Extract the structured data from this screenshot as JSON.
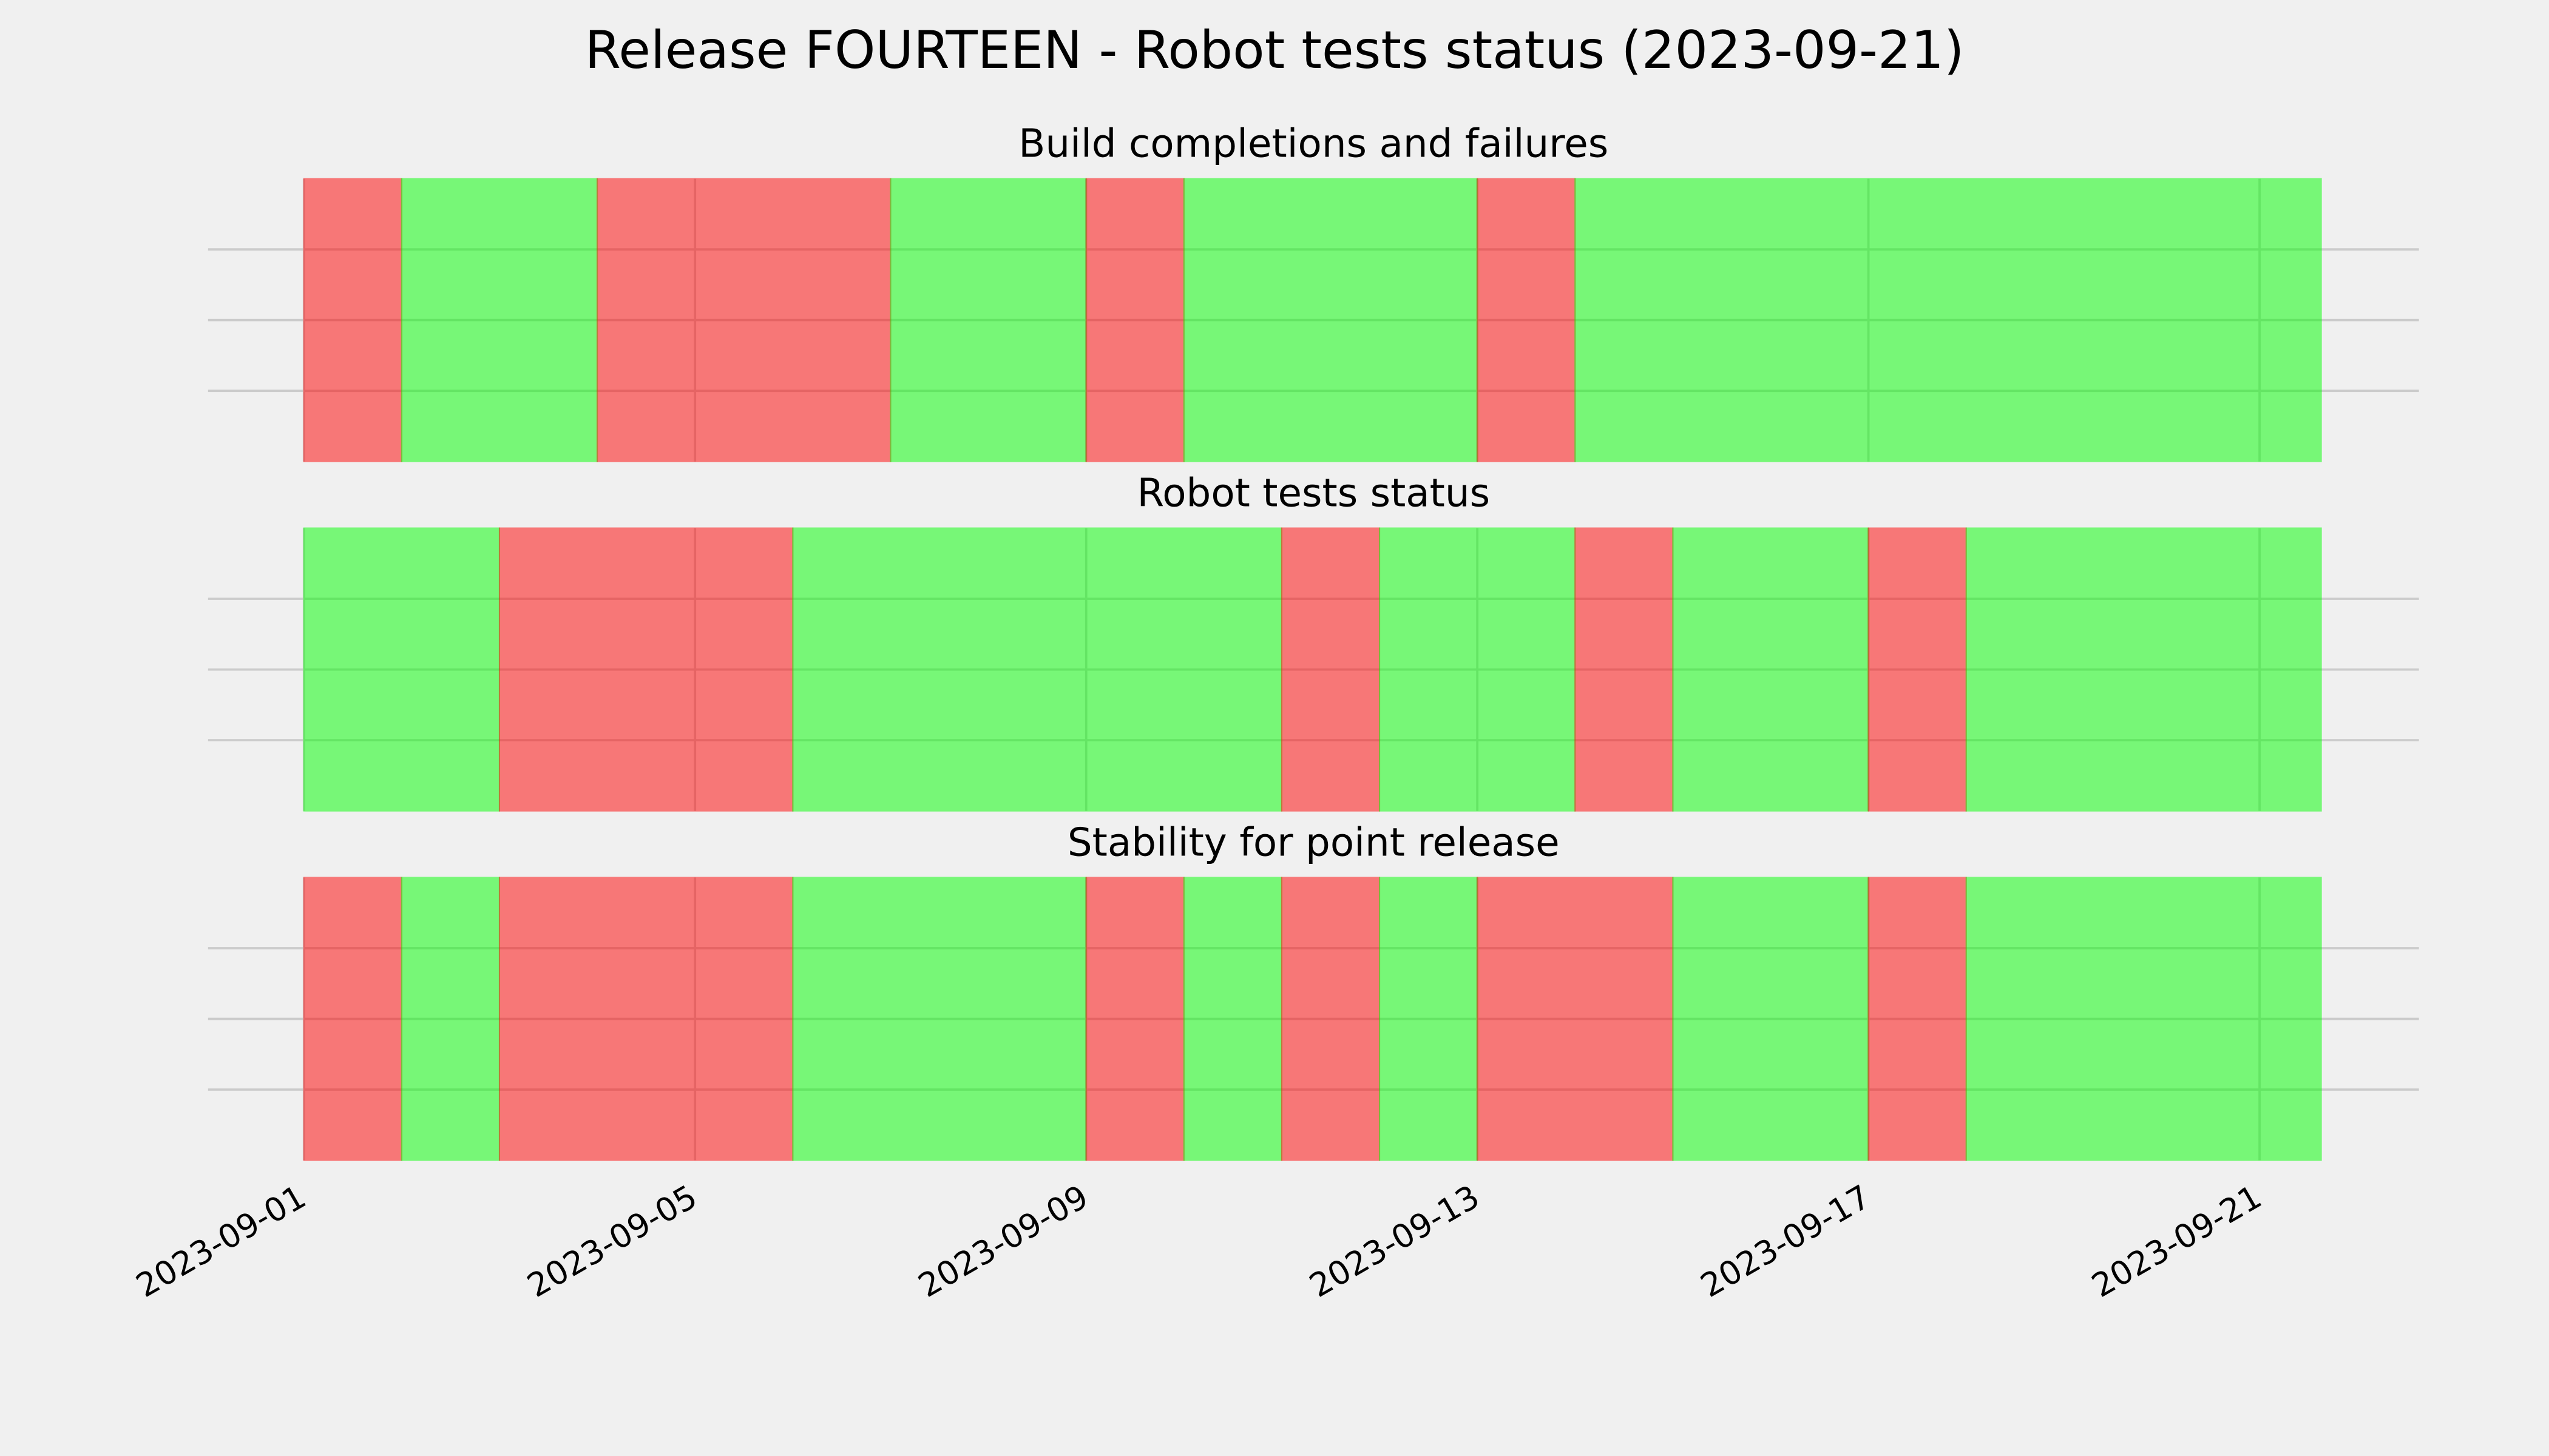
{
  "title": "Release FOURTEEN - Robot tests status (2023-09-21)",
  "chart_data": {
    "type": "span",
    "grid": true,
    "xlim": [
      -0.98,
      21.63
    ],
    "xticks": [
      {
        "value": 0,
        "label": "2023-09-01"
      },
      {
        "value": 4,
        "label": "2023-09-05"
      },
      {
        "value": 8,
        "label": "2023-09-09"
      },
      {
        "value": 12,
        "label": "2023-09-13"
      },
      {
        "value": 16,
        "label": "2023-09-17"
      },
      {
        "value": 20,
        "label": "2023-09-21"
      }
    ],
    "panels": [
      {
        "title": "Build completions and failures",
        "ylim": [
          0,
          1
        ],
        "yticks": [
          0.25,
          0.5,
          0.75
        ],
        "spans": [
          {
            "start": 0,
            "end": 1,
            "color": "#ff0000"
          },
          {
            "start": 1,
            "end": 3,
            "color": "#00ff00"
          },
          {
            "start": 3,
            "end": 6,
            "color": "#ff0000"
          },
          {
            "start": 6,
            "end": 8,
            "color": "#00ff00"
          },
          {
            "start": 8,
            "end": 9,
            "color": "#ff0000"
          },
          {
            "start": 9,
            "end": 12,
            "color": "#00ff00"
          },
          {
            "start": 12,
            "end": 13,
            "color": "#ff0000"
          },
          {
            "start": 13,
            "end": 20.63,
            "color": "#00ff00"
          }
        ]
      },
      {
        "title": "Robot tests status",
        "ylim": [
          0,
          1
        ],
        "yticks": [
          0.25,
          0.5,
          0.75
        ],
        "spans": [
          {
            "start": 0,
            "end": 2,
            "color": "#00ff00"
          },
          {
            "start": 2,
            "end": 5,
            "color": "#ff0000"
          },
          {
            "start": 5,
            "end": 10,
            "color": "#00ff00"
          },
          {
            "start": 10,
            "end": 11,
            "color": "#ff0000"
          },
          {
            "start": 11,
            "end": 13,
            "color": "#00ff00"
          },
          {
            "start": 13,
            "end": 14,
            "color": "#ff0000"
          },
          {
            "start": 14,
            "end": 16,
            "color": "#00ff00"
          },
          {
            "start": 16,
            "end": 17,
            "color": "#ff0000"
          },
          {
            "start": 17,
            "end": 20.63,
            "color": "#00ff00"
          }
        ]
      },
      {
        "title": "Stability for point release",
        "ylim": [
          0,
          1
        ],
        "yticks": [
          0.25,
          0.5,
          0.75
        ],
        "spans": [
          {
            "start": 0,
            "end": 1,
            "color": "#ff0000"
          },
          {
            "start": 1,
            "end": 2,
            "color": "#00ff00"
          },
          {
            "start": 2,
            "end": 5,
            "color": "#ff0000"
          },
          {
            "start": 5,
            "end": 8,
            "color": "#00ff00"
          },
          {
            "start": 8,
            "end": 9,
            "color": "#ff0000"
          },
          {
            "start": 9,
            "end": 10,
            "color": "#00ff00"
          },
          {
            "start": 10,
            "end": 11,
            "color": "#ff0000"
          },
          {
            "start": 11,
            "end": 12,
            "color": "#00ff00"
          },
          {
            "start": 12,
            "end": 14,
            "color": "#ff0000"
          },
          {
            "start": 14,
            "end": 16,
            "color": "#00ff00"
          },
          {
            "start": 16,
            "end": 17,
            "color": "#ff0000"
          },
          {
            "start": 17,
            "end": 20.63,
            "color": "#00ff00"
          }
        ]
      }
    ]
  }
}
